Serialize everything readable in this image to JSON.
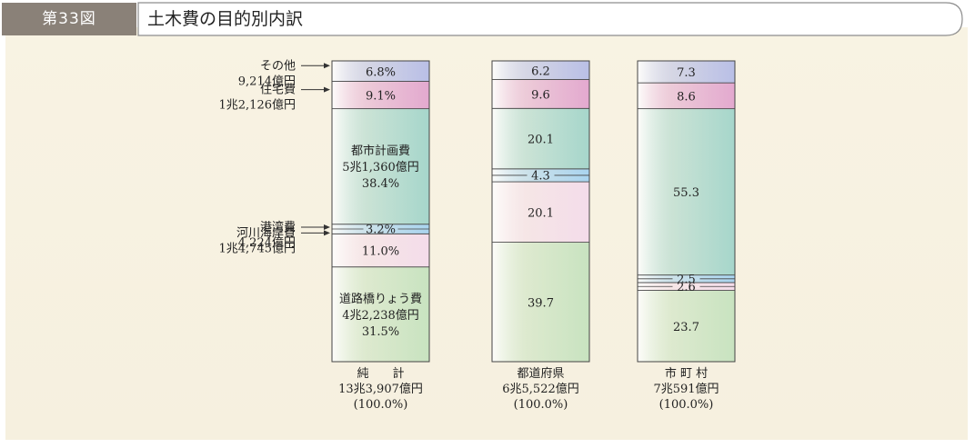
{
  "figure": {
    "number": "第33図",
    "title": "土木費の目的別内訳"
  },
  "chart_data": {
    "type": "stacked-bar",
    "unit": "%",
    "series_order_bottom_to_top": [
      "道路橋りょう費",
      "河川海岸費",
      "港湾費",
      "都市計画費",
      "住宅費",
      "その他"
    ],
    "category_labels": [
      {
        "name": "道路橋りょう費",
        "amount": "4兆2,238億円",
        "color": "#c8e3c0"
      },
      {
        "name": "河川海岸費",
        "amount": "1兆4,745億円",
        "color": "#f4dcea"
      },
      {
        "name": "港湾費",
        "amount": "4,224億円",
        "color": "#a9d4ef"
      },
      {
        "name": "都市計画費",
        "amount": "5兆1,360億円",
        "color": "#a6d6cb"
      },
      {
        "name": "住宅費",
        "amount": "1兆2,126億円",
        "color": "#e3a9cf"
      },
      {
        "name": "その他",
        "amount": "9,214億円",
        "color": "#b9bfe6"
      }
    ],
    "bars": [
      {
        "name": "純　　計",
        "total": "13兆3,907億円",
        "total_pct": "(100.0%)",
        "segments": [
          {
            "category": "道路橋りょう費",
            "value": 31.5,
            "label": "31.5%"
          },
          {
            "category": "河川海岸費",
            "value": 11.0,
            "label": "11.0%"
          },
          {
            "category": "港湾費",
            "value": 3.2,
            "label": "3.2%"
          },
          {
            "category": "都市計画費",
            "value": 38.4,
            "label": "38.4%"
          },
          {
            "category": "住宅費",
            "value": 9.1,
            "label": "9.1%"
          },
          {
            "category": "その他",
            "value": 6.8,
            "label": "6.8%"
          }
        ]
      },
      {
        "name": "都道府県",
        "total": "6兆5,522億円",
        "total_pct": "(100.0%)",
        "segments": [
          {
            "category": "道路橋りょう費",
            "value": 39.7,
            "label": "39.7"
          },
          {
            "category": "河川海岸費",
            "value": 20.1,
            "label": "20.1"
          },
          {
            "category": "港湾費",
            "value": 4.3,
            "label": "4.3"
          },
          {
            "category": "都市計画費",
            "value": 20.1,
            "label": "20.1"
          },
          {
            "category": "住宅費",
            "value": 9.6,
            "label": "9.6"
          },
          {
            "category": "その他",
            "value": 6.2,
            "label": "6.2"
          }
        ]
      },
      {
        "name": "市 町 村",
        "total": "7兆591億円",
        "total_pct": "(100.0%)",
        "segments": [
          {
            "category": "道路橋りょう費",
            "value": 23.7,
            "label": "23.7"
          },
          {
            "category": "河川海岸費",
            "value": 2.6,
            "label": "2.6"
          },
          {
            "category": "港湾費",
            "value": 2.5,
            "label": "2.5"
          },
          {
            "category": "都市計画費",
            "value": 55.3,
            "label": "55.3"
          },
          {
            "category": "住宅費",
            "value": 8.6,
            "label": "8.6"
          },
          {
            "category": "その他",
            "value": 7.3,
            "label": "7.3"
          }
        ]
      }
    ]
  }
}
